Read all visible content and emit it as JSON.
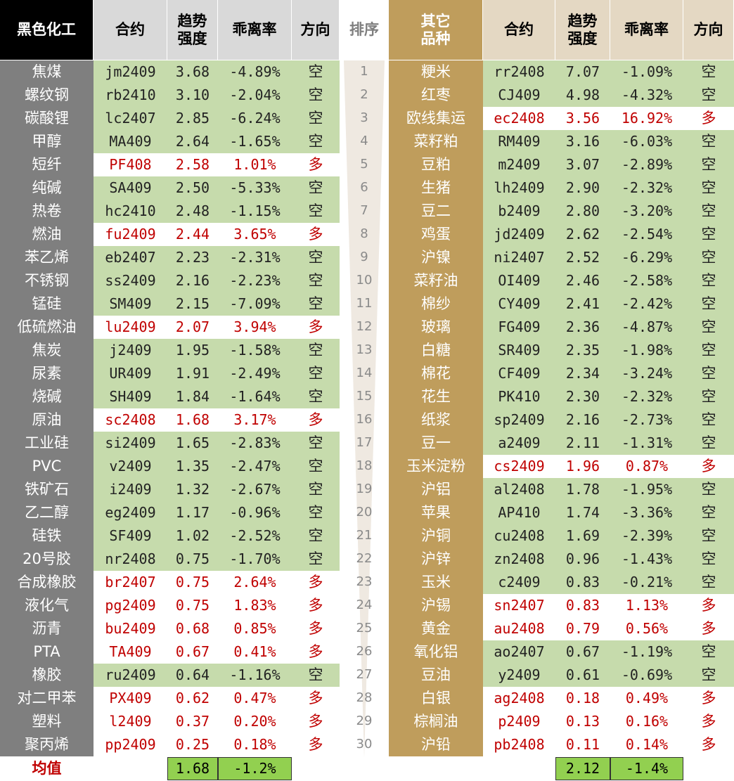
{
  "average_label": "均值",
  "rank": {
    "header": "排序",
    "values": [
      1,
      2,
      3,
      4,
      5,
      6,
      7,
      8,
      9,
      10,
      11,
      12,
      13,
      14,
      15,
      16,
      17,
      18,
      19,
      20,
      21,
      22,
      23,
      24,
      25,
      26,
      27,
      28,
      29,
      30
    ]
  },
  "left": {
    "header": [
      "黑色化工",
      "合约",
      "趋势强度",
      "乖离率",
      "方向"
    ],
    "rows": [
      [
        "焦煤",
        "jm2409",
        "3.68",
        "-4.89%",
        "空"
      ],
      [
        "螺纹钢",
        "rb2410",
        "3.10",
        "-2.04%",
        "空"
      ],
      [
        "碳酸锂",
        "lc2407",
        "2.85",
        "-6.24%",
        "空"
      ],
      [
        "甲醇",
        "MA409",
        "2.64",
        "-1.65%",
        "空"
      ],
      [
        "短纤",
        "PF408",
        "2.58",
        "1.01%",
        "多"
      ],
      [
        "纯碱",
        "SA409",
        "2.50",
        "-5.33%",
        "空"
      ],
      [
        "热卷",
        "hc2410",
        "2.48",
        "-1.15%",
        "空"
      ],
      [
        "燃油",
        "fu2409",
        "2.44",
        "3.65%",
        "多"
      ],
      [
        "苯乙烯",
        "eb2407",
        "2.23",
        "-2.31%",
        "空"
      ],
      [
        "不锈钢",
        "ss2409",
        "2.16",
        "-2.23%",
        "空"
      ],
      [
        "锰硅",
        "SM409",
        "2.15",
        "-7.09%",
        "空"
      ],
      [
        "低硫燃油",
        "lu2409",
        "2.07",
        "3.94%",
        "多"
      ],
      [
        "焦炭",
        "j2409",
        "1.95",
        "-1.58%",
        "空"
      ],
      [
        "尿素",
        "UR409",
        "1.91",
        "-2.49%",
        "空"
      ],
      [
        "烧碱",
        "SH409",
        "1.84",
        "-1.64%",
        "空"
      ],
      [
        "原油",
        "sc2408",
        "1.68",
        "3.17%",
        "多"
      ],
      [
        "工业硅",
        "si2409",
        "1.65",
        "-2.83%",
        "空"
      ],
      [
        "PVC",
        "v2409",
        "1.35",
        "-2.47%",
        "空"
      ],
      [
        "铁矿石",
        "i2409",
        "1.32",
        "-2.67%",
        "空"
      ],
      [
        "乙二醇",
        "eg2409",
        "1.17",
        "-0.96%",
        "空"
      ],
      [
        "硅铁",
        "SF409",
        "1.02",
        "-2.52%",
        "空"
      ],
      [
        "20号胶",
        "nr2408",
        "0.75",
        "-1.70%",
        "空"
      ],
      [
        "合成橡胶",
        "br2407",
        "0.75",
        "2.64%",
        "多"
      ],
      [
        "液化气",
        "pg2409",
        "0.75",
        "1.83%",
        "多"
      ],
      [
        "沥青",
        "bu2409",
        "0.68",
        "0.85%",
        "多"
      ],
      [
        "PTA",
        "TA409",
        "0.67",
        "0.41%",
        "多"
      ],
      [
        "橡胶",
        "ru2409",
        "0.64",
        "-1.16%",
        "空"
      ],
      [
        "对二甲苯",
        "PX409",
        "0.62",
        "0.47%",
        "多"
      ],
      [
        "塑料",
        "l2409",
        "0.37",
        "0.20%",
        "多"
      ],
      [
        "聚丙烯",
        "pp2409",
        "0.25",
        "0.18%",
        "多"
      ]
    ],
    "average": {
      "strength": "1.68",
      "deviation": "-1.2%"
    }
  },
  "right": {
    "header": [
      "其它品种",
      "合约",
      "趋势强度",
      "乖离率",
      "方向"
    ],
    "rows": [
      [
        "粳米",
        "rr2408",
        "7.07",
        "-1.09%",
        "空"
      ],
      [
        "红枣",
        "CJ409",
        "4.98",
        "-4.32%",
        "空"
      ],
      [
        "欧线集运",
        "ec2408",
        "3.56",
        "16.92%",
        "多"
      ],
      [
        "菜籽粕",
        "RM409",
        "3.16",
        "-6.03%",
        "空"
      ],
      [
        "豆粕",
        "m2409",
        "3.07",
        "-2.89%",
        "空"
      ],
      [
        "生猪",
        "lh2409",
        "2.90",
        "-2.32%",
        "空"
      ],
      [
        "豆二",
        "b2409",
        "2.80",
        "-3.20%",
        "空"
      ],
      [
        "鸡蛋",
        "jd2409",
        "2.62",
        "-2.54%",
        "空"
      ],
      [
        "沪镍",
        "ni2407",
        "2.52",
        "-6.29%",
        "空"
      ],
      [
        "菜籽油",
        "OI409",
        "2.46",
        "-2.58%",
        "空"
      ],
      [
        "棉纱",
        "CY409",
        "2.41",
        "-2.42%",
        "空"
      ],
      [
        "玻璃",
        "FG409",
        "2.36",
        "-4.87%",
        "空"
      ],
      [
        "白糖",
        "SR409",
        "2.35",
        "-1.98%",
        "空"
      ],
      [
        "棉花",
        "CF409",
        "2.34",
        "-3.24%",
        "空"
      ],
      [
        "花生",
        "PK410",
        "2.30",
        "-2.32%",
        "空"
      ],
      [
        "纸浆",
        "sp2409",
        "2.16",
        "-2.73%",
        "空"
      ],
      [
        "豆一",
        "a2409",
        "2.11",
        "-1.31%",
        "空"
      ],
      [
        "玉米淀粉",
        "cs2409",
        "1.96",
        "0.87%",
        "多"
      ],
      [
        "沪铝",
        "al2408",
        "1.78",
        "-1.95%",
        "空"
      ],
      [
        "苹果",
        "AP410",
        "1.74",
        "-3.36%",
        "空"
      ],
      [
        "沪铜",
        "cu2408",
        "1.69",
        "-2.39%",
        "空"
      ],
      [
        "沪锌",
        "zn2408",
        "0.96",
        "-1.43%",
        "空"
      ],
      [
        "玉米",
        "c2409",
        "0.83",
        "-0.21%",
        "空"
      ],
      [
        "沪锡",
        "sn2407",
        "0.83",
        "1.13%",
        "多"
      ],
      [
        "黄金",
        "au2408",
        "0.79",
        "0.56%",
        "多"
      ],
      [
        "氧化铝",
        "ao2407",
        "0.67",
        "-1.19%",
        "空"
      ],
      [
        "豆油",
        "y2409",
        "0.61",
        "-0.69%",
        "空"
      ],
      [
        "白银",
        "ag2408",
        "0.18",
        "0.49%",
        "多"
      ],
      [
        "棕榈油",
        "p2409",
        "0.13",
        "0.16%",
        "多"
      ],
      [
        "沪铅",
        "pb2408",
        "0.11",
        "0.14%",
        "多"
      ]
    ],
    "average": {
      "strength": "2.12",
      "deviation": "-1.4%"
    }
  }
}
